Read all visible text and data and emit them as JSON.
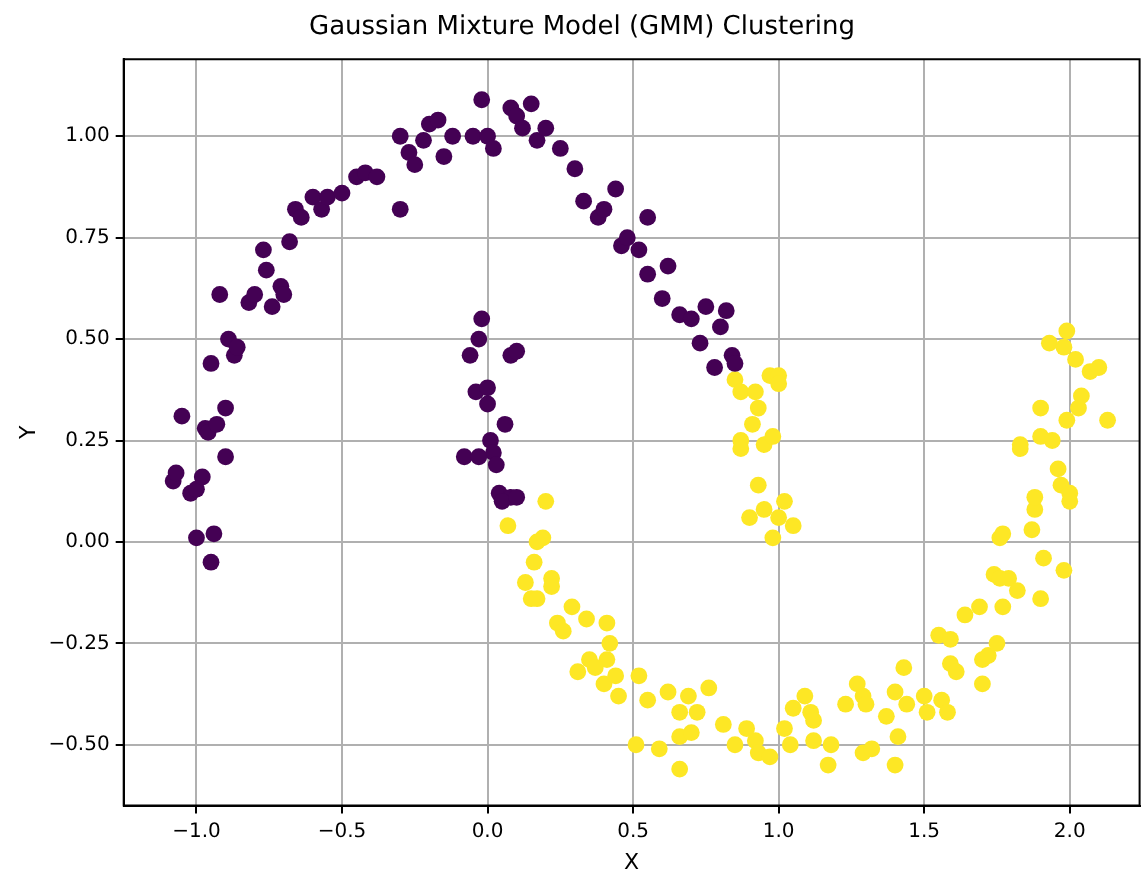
{
  "chart_data": {
    "type": "scatter",
    "title": "Gaussian Mixture Model (GMM) Clustering",
    "xlabel": "X",
    "ylabel": "Y",
    "xlim": [
      -1.25,
      2.24
    ],
    "ylim": [
      -0.65,
      1.19
    ],
    "xticks": [
      {
        "value": -1,
        "label": "−1.0"
      },
      {
        "value": -0.5,
        "label": "−0.5"
      },
      {
        "value": 0,
        "label": "0.0"
      },
      {
        "value": 0.5,
        "label": "0.5"
      },
      {
        "value": 1,
        "label": "1.0"
      },
      {
        "value": 1.5,
        "label": "1.5"
      },
      {
        "value": 2,
        "label": "2.0"
      }
    ],
    "yticks": [
      {
        "value": -0.5,
        "label": "−0.50"
      },
      {
        "value": -0.25,
        "label": "−0.25"
      },
      {
        "value": 0,
        "label": "0.00"
      },
      {
        "value": 0.25,
        "label": "0.25"
      },
      {
        "value": 0.5,
        "label": "0.50"
      },
      {
        "value": 0.75,
        "label": "0.75"
      },
      {
        "value": 1,
        "label": "1.00"
      }
    ],
    "grid": true,
    "marker": "circle",
    "series": [
      {
        "color": "#440154",
        "x": [
          -1.08,
          -1.07,
          -1.05,
          -1.02,
          -1.0,
          -1.0,
          -0.98,
          -0.97,
          -0.96,
          -0.95,
          -0.95,
          -0.94,
          -0.93,
          -0.92,
          -0.9,
          -0.9,
          -0.89,
          -0.87,
          -0.86,
          -0.82,
          -0.8,
          -0.77,
          -0.76,
          -0.74,
          -0.71,
          -0.7,
          -0.68,
          -0.66,
          -0.64,
          -0.6,
          -0.57,
          -0.55,
          -0.5,
          -0.45,
          -0.42,
          -0.38,
          -0.3,
          -0.3,
          -0.27,
          -0.25,
          -0.22,
          -0.2,
          -0.17,
          -0.15,
          -0.12,
          -0.05,
          -0.02,
          0.0,
          0.02,
          0.08,
          0.1,
          0.12,
          0.15,
          0.17,
          0.2,
          0.25,
          0.3,
          0.33,
          0.38,
          0.4,
          0.44,
          0.46,
          0.48,
          0.52,
          0.55,
          0.55,
          0.6,
          0.62,
          0.66,
          0.7,
          0.73,
          0.75,
          0.78,
          0.8,
          0.82,
          0.84,
          0.85,
          -0.06,
          -0.04,
          -0.03,
          -0.02,
          0.08,
          0.1,
          0.0,
          0.0,
          0.01,
          0.02,
          -0.08,
          -0.03,
          0.04,
          0.08,
          0.05,
          0.1,
          0.06,
          0.03
        ],
        "values": [
          0.15,
          0.17,
          0.31,
          0.12,
          0.01,
          0.13,
          0.16,
          0.28,
          0.27,
          -0.05,
          0.44,
          0.02,
          0.29,
          0.61,
          0.21,
          0.33,
          0.5,
          0.46,
          0.48,
          0.59,
          0.61,
          0.72,
          0.67,
          0.58,
          0.63,
          0.61,
          0.74,
          0.82,
          0.8,
          0.85,
          0.82,
          0.85,
          0.86,
          0.9,
          0.91,
          0.9,
          0.82,
          1.0,
          0.96,
          0.93,
          0.99,
          1.03,
          1.04,
          0.95,
          1.0,
          1.0,
          1.09,
          1.0,
          0.97,
          1.07,
          1.05,
          1.02,
          1.08,
          0.99,
          1.02,
          0.97,
          0.92,
          0.84,
          0.8,
          0.82,
          0.87,
          0.73,
          0.75,
          0.72,
          0.66,
          0.8,
          0.6,
          0.68,
          0.56,
          0.55,
          0.49,
          0.58,
          0.43,
          0.53,
          0.57,
          0.46,
          0.44,
          0.46,
          0.37,
          0.5,
          0.55,
          0.46,
          0.47,
          0.38,
          0.34,
          0.25,
          0.22,
          0.21,
          0.21,
          0.12,
          0.11,
          0.1,
          0.11,
          0.29,
          0.19
        ]
      },
      {
        "color": "#fde725",
        "x": [
          0.2,
          0.07,
          0.19,
          0.17,
          0.16,
          0.13,
          0.22,
          0.22,
          0.15,
          0.17,
          0.29,
          0.34,
          0.41,
          0.24,
          0.26,
          0.42,
          0.35,
          0.41,
          0.31,
          0.37,
          0.4,
          0.44,
          0.52,
          0.45,
          0.55,
          0.62,
          0.66,
          0.69,
          0.72,
          0.76,
          0.66,
          0.7,
          0.51,
          0.59,
          0.66,
          0.81,
          0.85,
          0.89,
          0.92,
          0.93,
          0.97,
          1.02,
          1.04,
          1.05,
          1.09,
          1.11,
          1.12,
          1.12,
          1.18,
          1.17,
          1.23,
          1.27,
          1.29,
          1.3,
          1.29,
          1.32,
          1.37,
          1.4,
          1.41,
          1.4,
          1.43,
          1.44,
          1.5,
          1.51,
          1.56,
          1.58,
          1.55,
          1.59,
          1.59,
          1.61,
          1.64,
          1.69,
          1.7,
          1.7,
          1.72,
          1.75,
          1.77,
          1.74,
          1.76,
          1.79,
          1.82,
          1.76,
          1.77,
          1.87,
          1.88,
          1.88,
          1.9,
          1.91,
          1.98,
          1.96,
          1.97,
          2.0,
          2.0,
          1.83,
          1.83,
          1.9,
          1.94,
          1.9,
          1.99,
          2.03,
          2.04,
          2.13,
          2.07,
          2.1,
          1.93,
          1.98,
          2.02,
          1.99,
          0.85,
          0.87,
          0.92,
          0.97,
          1.0,
          1.0,
          0.93,
          0.91,
          0.87,
          0.87,
          0.95,
          0.98,
          0.93,
          1.02,
          0.9,
          0.95,
          1.0,
          1.05,
          0.98
        ],
        "values": [
          0.1,
          0.04,
          0.01,
          0.0,
          -0.05,
          -0.1,
          -0.09,
          -0.11,
          -0.14,
          -0.14,
          -0.16,
          -0.19,
          -0.2,
          -0.2,
          -0.22,
          -0.25,
          -0.29,
          -0.29,
          -0.32,
          -0.31,
          -0.35,
          -0.33,
          -0.33,
          -0.38,
          -0.39,
          -0.37,
          -0.42,
          -0.38,
          -0.42,
          -0.36,
          -0.48,
          -0.47,
          -0.5,
          -0.51,
          -0.56,
          -0.45,
          -0.5,
          -0.46,
          -0.49,
          -0.52,
          -0.53,
          -0.46,
          -0.5,
          -0.41,
          -0.38,
          -0.42,
          -0.44,
          -0.49,
          -0.5,
          -0.55,
          -0.4,
          -0.35,
          -0.38,
          -0.4,
          -0.52,
          -0.51,
          -0.43,
          -0.37,
          -0.48,
          -0.55,
          -0.31,
          -0.4,
          -0.38,
          -0.42,
          -0.39,
          -0.42,
          -0.23,
          -0.24,
          -0.3,
          -0.32,
          -0.18,
          -0.16,
          -0.29,
          -0.35,
          -0.28,
          -0.25,
          -0.16,
          -0.08,
          -0.09,
          -0.09,
          -0.12,
          0.01,
          0.02,
          0.03,
          0.08,
          0.11,
          -0.14,
          -0.04,
          -0.07,
          0.18,
          0.14,
          0.12,
          0.1,
          0.23,
          0.24,
          0.26,
          0.25,
          0.33,
          0.3,
          0.33,
          0.36,
          0.3,
          0.42,
          0.43,
          0.49,
          0.48,
          0.45,
          0.52,
          0.4,
          0.37,
          0.37,
          0.41,
          0.41,
          0.39,
          0.33,
          0.29,
          0.25,
          0.23,
          0.24,
          0.26,
          0.14,
          0.1,
          0.06,
          0.08,
          0.06,
          0.04,
          0.01
        ]
      }
    ]
  }
}
